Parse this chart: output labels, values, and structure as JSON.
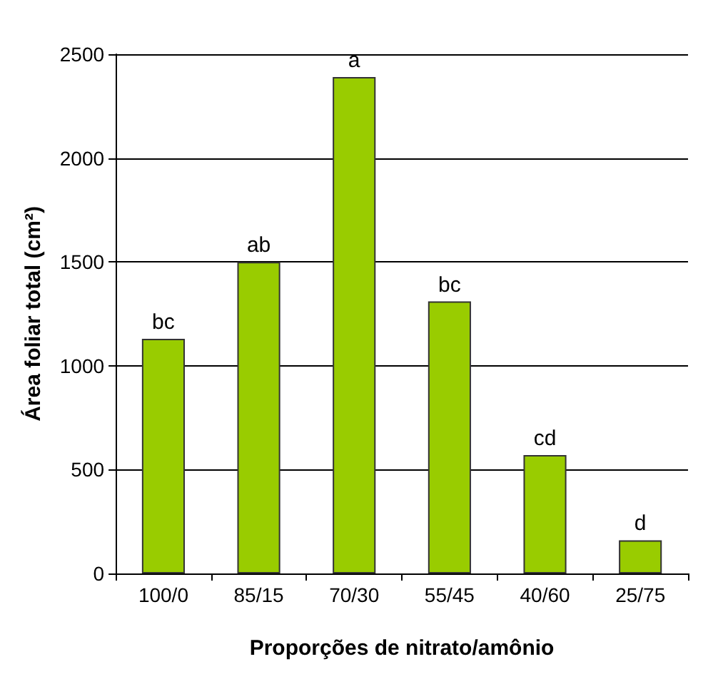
{
  "chart_data": {
    "type": "bar",
    "xlabel": "Proporções de nitrato/amônio",
    "ylabel": "Área foliar total (cm²)",
    "categories": [
      "100/0",
      "85/15",
      "70/30",
      "55/45",
      "40/60",
      "25/75"
    ],
    "values": [
      1130,
      1500,
      2390,
      1310,
      570,
      160
    ],
    "color": "#99cc00",
    "ylim": [
      0,
      2500
    ],
    "yticks": [
      0,
      500,
      1000,
      1500,
      2000,
      2500
    ],
    "grid": "y",
    "annotations": [
      {
        "text": "bc",
        "x": "100/0",
        "y": 1130
      },
      {
        "text": "ab",
        "x": "85/15",
        "y": 1500
      },
      {
        "text": "a",
        "x": "70/30",
        "y": 2390
      },
      {
        "text": "bc",
        "x": "55/45",
        "y": 1310
      },
      {
        "text": "cd",
        "x": "40/60",
        "y": 570
      },
      {
        "text": "d",
        "x": "25/75",
        "y": 160
      }
    ]
  }
}
